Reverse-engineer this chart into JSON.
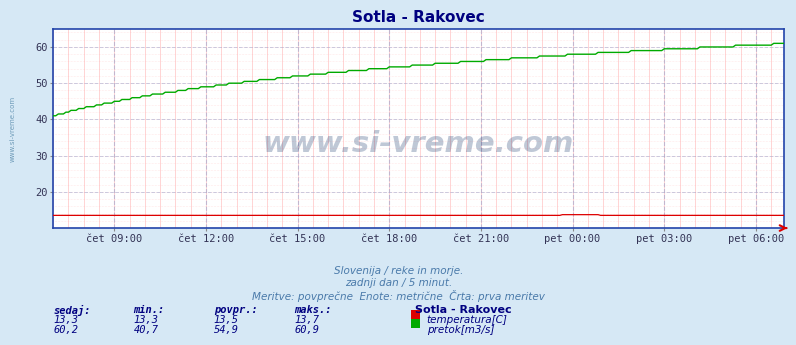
{
  "title": "Sotla - Rakovec",
  "title_color": "#000080",
  "bg_color": "#d6e8f5",
  "plot_bg_color": "#ffffff",
  "grid_major_color": "#aaaacc",
  "grid_minor_color": "#ffaaaa",
  "xlabel_ticks": [
    "čet 09:00",
    "čet 12:00",
    "čet 15:00",
    "čet 18:00",
    "čet 21:00",
    "pet 00:00",
    "pet 03:00",
    "pet 06:00"
  ],
  "n_points": 288,
  "ylim": [
    10,
    65
  ],
  "yticks": [
    20,
    30,
    40,
    50,
    60
  ],
  "temp_color": "#dd0000",
  "flow_color": "#00aa00",
  "temp_min": 13.3,
  "temp_max": 13.7,
  "temp_avg": 13.5,
  "flow_min": 40.7,
  "flow_max": 60.9,
  "flow_avg": 54.9,
  "flow_current": 60.2,
  "temp_current": 13.3,
  "watermark": "www.si-vreme.com",
  "watermark_color": "#1a3a6e",
  "subtitle1": "Slovenija / reke in morje.",
  "subtitle2": "zadnji dan / 5 minut.",
  "subtitle3": "Meritve: povprečne  Enote: metrične  Črta: prva meritev",
  "subtitle_color": "#4a7aaa",
  "legend_title": "Sotla - Rakovec",
  "legend_color": "#000080",
  "table_header_color": "#000080",
  "table_value_color": "#000080",
  "left_label_color": "#5588aa",
  "left_label": "www.si-vreme.com",
  "border_color": "#2244aa",
  "arrow_color": "#dd0000"
}
